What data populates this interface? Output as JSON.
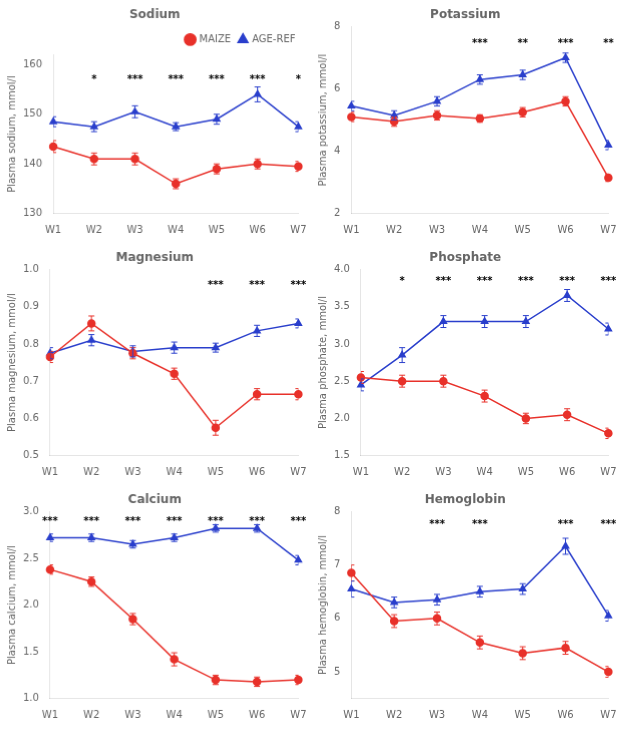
{
  "chart_data": [
    {
      "type": "line",
      "title": "Sodium",
      "y_label": "Plasma sodium, mmol/l",
      "categories": [
        "W1",
        "W2",
        "W3",
        "W4",
        "W5",
        "W6",
        "W7"
      ],
      "series": [
        {
          "name": "MAIZE",
          "color": "#e8312a",
          "marker": "circle",
          "line_style": "solid",
          "values": [
            143.5,
            141.0,
            141.0,
            136.0,
            139.0,
            140.0,
            139.5
          ],
          "errors": [
            1.2,
            1.2,
            1.2,
            1.0,
            1.0,
            1.0,
            1.0
          ]
        },
        {
          "name": "AGE-REF",
          "color": "#2a3fcc",
          "marker": "triangle",
          "line_style": "solid",
          "values": [
            148.5,
            147.5,
            150.5,
            147.5,
            149.0,
            154.0,
            147.5
          ],
          "errors": [
            1.0,
            1.0,
            1.2,
            0.8,
            1.0,
            1.5,
            1.0
          ]
        }
      ],
      "ylim": [
        130,
        162
      ],
      "yticks": [
        130,
        140,
        150,
        160
      ],
      "grid": false,
      "legend": "upper right",
      "annotations": [
        {
          "x": "W2",
          "y": 158,
          "text": "*"
        },
        {
          "x": "W3",
          "y": 158,
          "text": "***"
        },
        {
          "x": "W4",
          "y": 158,
          "text": "***"
        },
        {
          "x": "W5",
          "y": 158,
          "text": "***"
        },
        {
          "x": "W6",
          "y": 158,
          "text": "***"
        },
        {
          "x": "W7",
          "y": 158,
          "text": "*"
        }
      ]
    },
    {
      "type": "line",
      "title": "Potassium",
      "y_label": "Plasma potassium, mmol/l",
      "categories": [
        "W1",
        "W2",
        "W3",
        "W4",
        "W5",
        "W6",
        "W7"
      ],
      "series": [
        {
          "name": "MAIZE",
          "color": "#e8312a",
          "marker": "circle",
          "line_style": "solid",
          "values": [
            5.1,
            4.95,
            5.15,
            5.05,
            5.25,
            5.6,
            3.15
          ],
          "errors": [
            0.15,
            0.15,
            0.15,
            0.12,
            0.15,
            0.15,
            0.12
          ]
        },
        {
          "name": "AGE-REF",
          "color": "#2a3fcc",
          "marker": "triangle",
          "line_style": "solid",
          "values": [
            5.45,
            5.15,
            5.6,
            6.3,
            6.45,
            7.0,
            4.2
          ],
          "errors": [
            0.15,
            0.15,
            0.15,
            0.15,
            0.15,
            0.15,
            0.15
          ]
        }
      ],
      "ylim": [
        2,
        8
      ],
      "yticks": [
        2,
        4,
        6,
        8
      ],
      "grid": false,
      "annotations": [
        {
          "x": "W4",
          "y": 7.6,
          "text": "***"
        },
        {
          "x": "W5",
          "y": 7.6,
          "text": "**"
        },
        {
          "x": "W6",
          "y": 7.6,
          "text": "***"
        },
        {
          "x": "W7",
          "y": 7.6,
          "text": "**"
        }
      ]
    },
    {
      "type": "line",
      "title": "Magnesium",
      "y_label": "Plasma magnesium, mmol/l",
      "categories": [
        "W1",
        "W2",
        "W3",
        "W4",
        "W5",
        "W6",
        "W7"
      ],
      "series": [
        {
          "name": "MAIZE",
          "color": "#e8312a",
          "marker": "circle",
          "line_style": "solid",
          "values": [
            0.765,
            0.855,
            0.775,
            0.72,
            0.575,
            0.665,
            0.665
          ],
          "errors": [
            0.015,
            0.02,
            0.015,
            0.015,
            0.02,
            0.015,
            0.015
          ]
        },
        {
          "name": "AGE-REF",
          "color": "#2a3fcc",
          "marker": "triangle",
          "line_style": "solid",
          "values": [
            0.775,
            0.81,
            0.78,
            0.79,
            0.79,
            0.835,
            0.855
          ],
          "errors": [
            0.015,
            0.015,
            0.015,
            0.015,
            0.012,
            0.015,
            0.012
          ]
        }
      ],
      "ylim": [
        0.5,
        1.0
      ],
      "yticks": [
        0.5,
        0.6,
        0.7,
        0.8,
        0.9,
        {
          "value": 1.0,
          "label": "1.0"
        }
      ],
      "grid": false,
      "annotations": [
        {
          "x": "W5",
          "y": 0.97,
          "text": "***"
        },
        {
          "x": "W6",
          "y": 0.97,
          "text": "***"
        },
        {
          "x": "W7",
          "y": 0.97,
          "text": "***"
        }
      ]
    },
    {
      "type": "line",
      "title": "Phosphate",
      "y_label": "Plasma phosphate, mmol/l",
      "categories": [
        "W1",
        "W2",
        "W3",
        "W4",
        "W5",
        "W6",
        "W7"
      ],
      "series": [
        {
          "name": "MAIZE",
          "color": "#e8312a",
          "marker": "circle",
          "line_style": "solid",
          "values": [
            2.55,
            2.5,
            2.5,
            2.3,
            2.0,
            2.05,
            1.8
          ],
          "errors": [
            0.08,
            0.08,
            0.08,
            0.08,
            0.07,
            0.08,
            0.07
          ]
        },
        {
          "name": "AGE-REF",
          "color": "#2a3fcc",
          "marker": "triangle",
          "line_style": "solid",
          "values": [
            2.45,
            2.85,
            3.3,
            3.3,
            3.3,
            3.65,
            3.2
          ],
          "errors": [
            0.08,
            0.1,
            0.08,
            0.08,
            0.08,
            0.08,
            0.08
          ]
        }
      ],
      "ylim": [
        1.5,
        4.0
      ],
      "yticks": [
        1.5,
        {
          "value": 2.0,
          "label": "2.0"
        },
        2.5,
        {
          "value": 3.0,
          "label": "3.0"
        },
        3.5,
        {
          "value": 4.0,
          "label": "4.0"
        }
      ],
      "grid": false,
      "annotations": [
        {
          "x": "W2",
          "y": 3.9,
          "text": "*"
        },
        {
          "x": "W3",
          "y": 3.9,
          "text": "***"
        },
        {
          "x": "W4",
          "y": 3.9,
          "text": "***"
        },
        {
          "x": "W5",
          "y": 3.9,
          "text": "***"
        },
        {
          "x": "W6",
          "y": 3.9,
          "text": "***"
        },
        {
          "x": "W7",
          "y": 3.9,
          "text": "***"
        }
      ]
    },
    {
      "type": "line",
      "title": "Calcium",
      "y_label": "Plasma calcium, mmol/l",
      "categories": [
        "W1",
        "W2",
        "W3",
        "W4",
        "W5",
        "W6",
        "W7"
      ],
      "series": [
        {
          "name": "MAIZE",
          "color": "#e8312a",
          "marker": "circle",
          "line_style": "solid",
          "values": [
            2.38,
            2.25,
            1.85,
            1.42,
            1.2,
            1.18,
            1.2
          ],
          "errors": [
            0.05,
            0.05,
            0.06,
            0.07,
            0.05,
            0.05,
            0.05
          ]
        },
        {
          "name": "AGE-REF",
          "color": "#2a3fcc",
          "marker": "triangle",
          "line_style": "solid",
          "values": [
            2.72,
            2.72,
            2.65,
            2.72,
            2.82,
            2.82,
            2.48
          ],
          "errors": [
            0.04,
            0.04,
            0.04,
            0.04,
            0.04,
            0.04,
            0.05
          ]
        }
      ],
      "ylim": [
        1.0,
        3.0
      ],
      "yticks": [
        {
          "value": 1.0,
          "label": "1.0"
        },
        1.5,
        {
          "value": 2.0,
          "label": "2.0"
        },
        2.5,
        {
          "value": 3.0,
          "label": "3.0"
        }
      ],
      "grid": false,
      "annotations": [
        {
          "x": "W1",
          "y": 2.95,
          "text": "***"
        },
        {
          "x": "W2",
          "y": 2.95,
          "text": "***"
        },
        {
          "x": "W3",
          "y": 2.95,
          "text": "***"
        },
        {
          "x": "W4",
          "y": 2.95,
          "text": "***"
        },
        {
          "x": "W5",
          "y": 2.95,
          "text": "***"
        },
        {
          "x": "W6",
          "y": 2.95,
          "text": "***"
        },
        {
          "x": "W7",
          "y": 2.95,
          "text": "***"
        }
      ]
    },
    {
      "type": "line",
      "title": "Hemoglobin",
      "y_label": "Plasma hemoglobin, mmol/l",
      "categories": [
        "W1",
        "W2",
        "W3",
        "W4",
        "W5",
        "W6",
        "W7"
      ],
      "series": [
        {
          "name": "MAIZE",
          "color": "#e8312a",
          "marker": "circle",
          "line_style": "solid",
          "values": [
            6.85,
            5.95,
            6.0,
            5.55,
            5.35,
            5.45,
            5.0
          ],
          "errors": [
            0.15,
            0.12,
            0.12,
            0.12,
            0.12,
            0.12,
            0.1
          ]
        },
        {
          "name": "AGE-REF",
          "color": "#2a3fcc",
          "marker": "triangle",
          "line_style": "solid",
          "values": [
            6.55,
            6.3,
            6.35,
            6.5,
            6.55,
            7.35,
            6.05
          ],
          "errors": [
            0.15,
            0.1,
            0.1,
            0.1,
            0.1,
            0.15,
            0.1
          ]
        }
      ],
      "ylim": [
        4.5,
        8.0
      ],
      "yticks": [
        5,
        6,
        7,
        8
      ],
      "grid": false,
      "annotations": [
        {
          "x": "W3",
          "y": 7.85,
          "text": "***"
        },
        {
          "x": "W4",
          "y": 7.85,
          "text": "***"
        },
        {
          "x": "W6",
          "y": 7.85,
          "text": "***"
        },
        {
          "x": "W7",
          "y": 7.85,
          "text": "***"
        }
      ]
    }
  ]
}
